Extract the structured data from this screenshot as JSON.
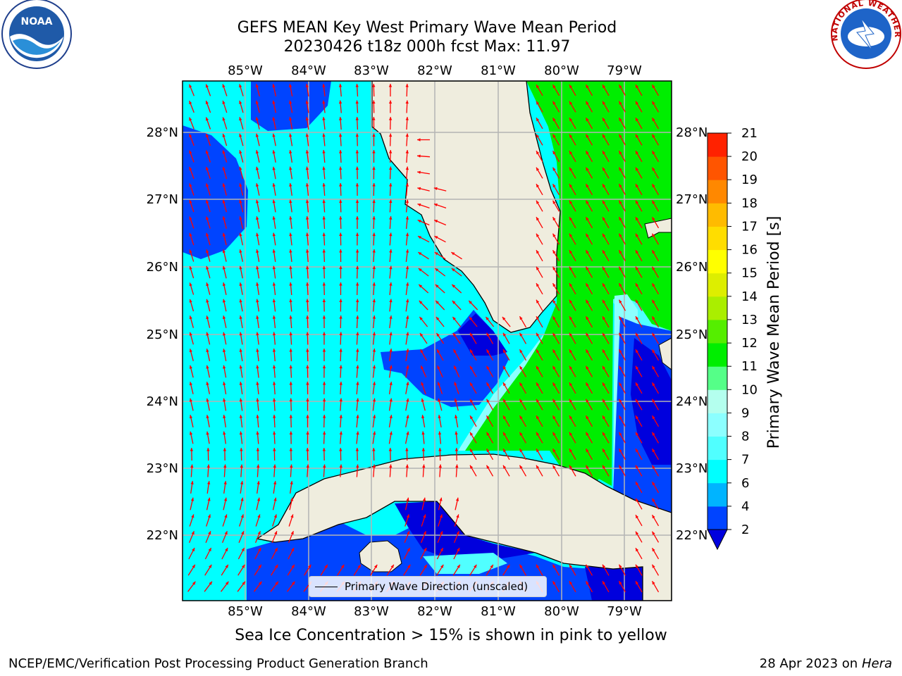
{
  "title_line1": "GEFS MEAN Key West Primary Wave Mean Period",
  "title_line2": "20230426 t18z 000h fcst   Max: 11.97",
  "subtitle": "Sea Ice Concentration > 15% is shown in pink to yellow",
  "credit_left": "NCEP/EMC/Verification Post Processing Product Generation Branch",
  "credit_right_date": "28 Apr 2023 on ",
  "credit_right_host": "Hera",
  "logo_left": "NOAA",
  "logo_right": "NATIONAL WEATHER SERVICE",
  "legend_label": "Primary Wave Direction (unscaled)",
  "colorbar": {
    "label": "Primary Wave Mean Period [s]",
    "ticks": [
      "2",
      "4",
      "6",
      "7",
      "8",
      "9",
      "10",
      "11",
      "12",
      "13",
      "14",
      "15",
      "16",
      "17",
      "18",
      "19",
      "20",
      "21"
    ],
    "colors": [
      "#0044ff",
      "#00b4ff",
      "#00ffff",
      "#50ffff",
      "#8cffff",
      "#b4ffee",
      "#55ff88",
      "#00ee00",
      "#55ee00",
      "#aaee00",
      "#ddee00",
      "#ffff00",
      "#ffdd00",
      "#ffbb00",
      "#ff8800",
      "#ff5500",
      "#ff2200"
    ],
    "under_color": "#0000dd"
  },
  "map": {
    "lon_labels": [
      "85°W",
      "84°W",
      "83°W",
      "82°W",
      "81°W",
      "80°W",
      "79°W"
    ],
    "lat_labels": [
      "28°N",
      "27°N",
      "26°N",
      "25°N",
      "24°N",
      "23°N",
      "22°N"
    ],
    "colors": {
      "land": "#efedde",
      "grid": "#b4b4b4",
      "arrow": "#ff0000",
      "coast": "#000000",
      "frame": "#000000"
    }
  }
}
